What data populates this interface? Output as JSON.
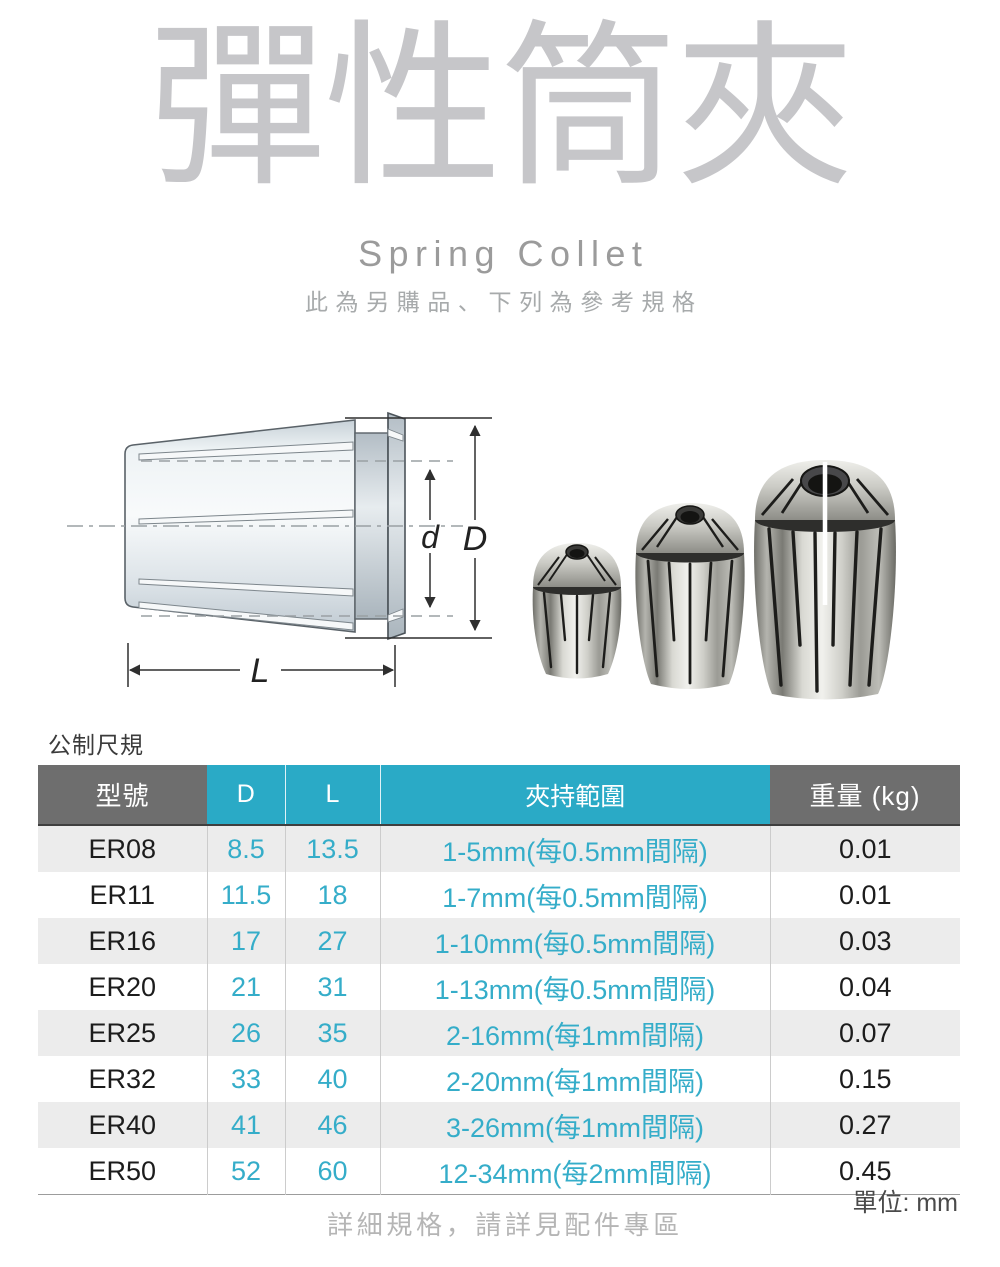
{
  "header": {
    "title": "彈性筒夾",
    "subtitle": "Spring Collet",
    "tagline": "此為另購品、下列為參考規格"
  },
  "diagram": {
    "label_d": "d",
    "label_D": "D",
    "label_L": "L"
  },
  "photo": {
    "description": "three spring collets, small / medium / large"
  },
  "spec": {
    "section_label": "公制尺規",
    "columns": [
      "型號",
      "D",
      "L",
      "夾持範圍",
      "重量 (kg)"
    ],
    "rows": [
      {
        "model": "ER08",
        "d": "8.5",
        "l": "13.5",
        "range": "1-5mm(每0.5mm間隔)",
        "weight": "0.01"
      },
      {
        "model": "ER11",
        "d": "11.5",
        "l": "18",
        "range": "1-7mm(每0.5mm間隔)",
        "weight": "0.01"
      },
      {
        "model": "ER16",
        "d": "17",
        "l": "27",
        "range": "1-10mm(每0.5mm間隔)",
        "weight": "0.03"
      },
      {
        "model": "ER20",
        "d": "21",
        "l": "31",
        "range": "1-13mm(每0.5mm間隔)",
        "weight": "0.04"
      },
      {
        "model": "ER25",
        "d": "26",
        "l": "35",
        "range": "2-16mm(每1mm間隔)",
        "weight": "0.07"
      },
      {
        "model": "ER32",
        "d": "33",
        "l": "40",
        "range": "2-20mm(每1mm間隔)",
        "weight": "0.15"
      },
      {
        "model": "ER40",
        "d": "41",
        "l": "46",
        "range": "3-26mm(每1mm間隔)",
        "weight": "0.27"
      },
      {
        "model": "ER50",
        "d": "52",
        "l": "60",
        "range": "12-34mm(每2mm間隔)",
        "weight": "0.45"
      }
    ],
    "unit_note": "單位: mm"
  },
  "footer": {
    "note": "詳細規格，請詳見配件專區"
  },
  "colors": {
    "accent_teal": "#2aaac6",
    "teal_text": "#35adc9",
    "header_gray": "#6e6e6e",
    "row_stripe": "#ececec",
    "title_gray": "#c6c6c9"
  }
}
